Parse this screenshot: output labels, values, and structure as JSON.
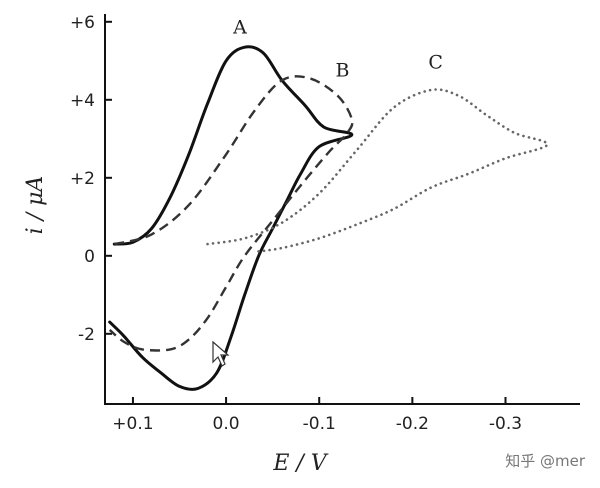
{
  "chart_data": {
    "type": "line",
    "xlabel": "E / V",
    "ylabel": "i / μA",
    "xlim": [
      0.13,
      -0.38
    ],
    "ylim": [
      -3.8,
      6.2
    ],
    "x_ticks": [
      {
        "value": 0.1,
        "label": "+0.1"
      },
      {
        "value": 0.0,
        "label": "0.0"
      },
      {
        "value": -0.1,
        "label": "-0.1"
      },
      {
        "value": -0.2,
        "label": "-0.2"
      },
      {
        "value": -0.3,
        "label": "-0.3"
      }
    ],
    "y_ticks": [
      {
        "value": 6,
        "label": "+6"
      },
      {
        "value": 4,
        "label": "+4"
      },
      {
        "value": 2,
        "label": "+2"
      },
      {
        "value": 0,
        "label": "0"
      },
      {
        "value": -2,
        "label": "-2"
      }
    ],
    "series": [
      {
        "name": "A",
        "style": "solid",
        "color": "#111111",
        "label_at": {
          "x": -0.015,
          "y": 5.7
        },
        "points": [
          [
            0.12,
            0.3
          ],
          [
            0.1,
            0.35
          ],
          [
            0.08,
            0.7
          ],
          [
            0.06,
            1.5
          ],
          [
            0.04,
            2.6
          ],
          [
            0.02,
            3.9
          ],
          [
            0.0,
            5.0
          ],
          [
            -0.02,
            5.35
          ],
          [
            -0.04,
            5.2
          ],
          [
            -0.06,
            4.5
          ],
          [
            -0.085,
            3.85
          ],
          [
            -0.105,
            3.3
          ],
          [
            -0.135,
            3.1
          ],
          [
            -0.1,
            2.8
          ],
          [
            -0.08,
            2.1
          ],
          [
            -0.065,
            1.4
          ],
          [
            -0.05,
            0.7
          ],
          [
            -0.035,
            0.0
          ],
          [
            -0.02,
            -1.0
          ],
          [
            -0.005,
            -2.1
          ],
          [
            0.01,
            -3.0
          ],
          [
            0.03,
            -3.4
          ],
          [
            0.05,
            -3.35
          ],
          [
            0.07,
            -3.0
          ],
          [
            0.09,
            -2.6
          ],
          [
            0.11,
            -2.05
          ],
          [
            0.125,
            -1.7
          ]
        ]
      },
      {
        "name": "B",
        "style": "dashed",
        "color": "#333333",
        "label_at": {
          "x": -0.125,
          "y": 4.6
        },
        "points": [
          [
            0.12,
            0.3
          ],
          [
            0.08,
            0.55
          ],
          [
            0.04,
            1.3
          ],
          [
            0.0,
            2.6
          ],
          [
            -0.03,
            3.7
          ],
          [
            -0.06,
            4.5
          ],
          [
            -0.09,
            4.55
          ],
          [
            -0.12,
            4.1
          ],
          [
            -0.135,
            3.5
          ],
          [
            -0.13,
            3.15
          ],
          [
            -0.11,
            2.65
          ],
          [
            -0.08,
            1.8
          ],
          [
            -0.05,
            0.9
          ],
          [
            -0.02,
            0.0
          ],
          [
            0.0,
            -0.8
          ],
          [
            0.02,
            -1.6
          ],
          [
            0.04,
            -2.15
          ],
          [
            0.06,
            -2.4
          ],
          [
            0.09,
            -2.4
          ],
          [
            0.11,
            -2.2
          ],
          [
            0.125,
            -1.9
          ]
        ]
      },
      {
        "name": "C",
        "style": "dotted",
        "color": "#666666",
        "label_at": {
          "x": -0.225,
          "y": 4.8
        },
        "points": [
          [
            0.02,
            0.3
          ],
          [
            -0.02,
            0.45
          ],
          [
            -0.06,
            0.85
          ],
          [
            -0.1,
            1.6
          ],
          [
            -0.14,
            2.7
          ],
          [
            -0.18,
            3.8
          ],
          [
            -0.22,
            4.25
          ],
          [
            -0.25,
            4.1
          ],
          [
            -0.28,
            3.6
          ],
          [
            -0.31,
            3.15
          ],
          [
            -0.345,
            2.85
          ],
          [
            -0.3,
            2.5
          ],
          [
            -0.26,
            2.1
          ],
          [
            -0.22,
            1.75
          ],
          [
            -0.18,
            1.2
          ],
          [
            -0.14,
            0.8
          ],
          [
            -0.1,
            0.45
          ],
          [
            -0.06,
            0.2
          ],
          [
            -0.03,
            0.1
          ]
        ]
      }
    ]
  },
  "watermark": "知乎 @mer"
}
